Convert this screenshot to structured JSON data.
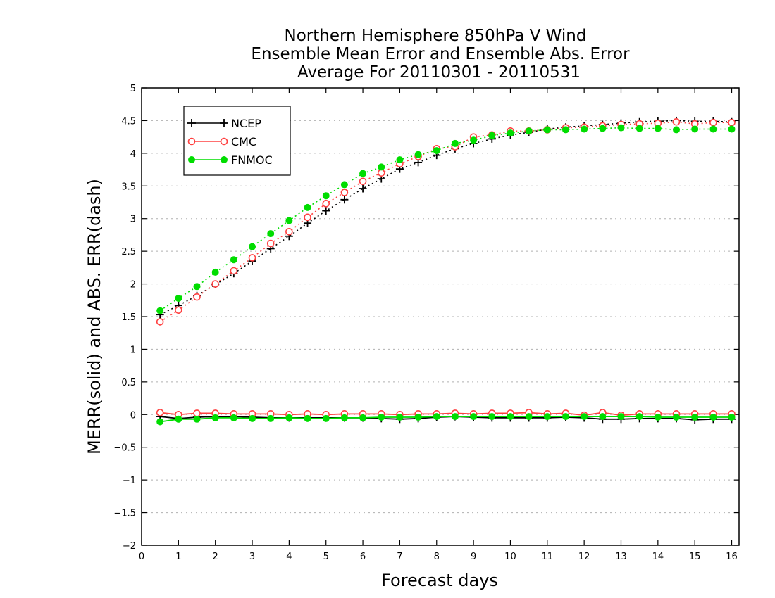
{
  "chart_data": {
    "type": "line",
    "title": [
      "Northern Hemisphere 850hPa V Wind",
      "Ensemble Mean Error and Ensemble Abs. Error",
      "Average For 20110301 - 20110531"
    ],
    "xlabel": "Forecast days",
    "ylabel": "MERR(solid) and ABS. ERR(dash)",
    "xlim": [
      0,
      16.2
    ],
    "ylim": [
      -2,
      5
    ],
    "xticks": [
      0,
      1,
      2,
      3,
      4,
      5,
      6,
      7,
      8,
      9,
      10,
      11,
      12,
      13,
      14,
      15,
      16
    ],
    "yticks": [
      -2,
      -1.5,
      -1,
      -0.5,
      0,
      0.5,
      1,
      1.5,
      2,
      2.5,
      3,
      3.5,
      4,
      4.5,
      5
    ],
    "grid": true,
    "legend": {
      "placement": "top-left",
      "entries": [
        "NCEP",
        "CMC",
        "FNMOC"
      ]
    },
    "x": [
      0.5,
      1,
      1.5,
      2,
      2.5,
      3,
      3.5,
      4,
      4.5,
      5,
      5.5,
      6,
      6.5,
      7,
      7.5,
      8,
      8.5,
      9,
      9.5,
      10,
      10.5,
      11,
      11.5,
      12,
      12.5,
      13,
      13.5,
      14,
      14.5,
      15,
      15.5,
      16
    ],
    "series": [
      {
        "name": "NCEP",
        "color": "#000000",
        "marker": "plus",
        "merr": [
          -0.03,
          -0.06,
          -0.04,
          -0.03,
          -0.03,
          -0.04,
          -0.05,
          -0.05,
          -0.05,
          -0.05,
          -0.05,
          -0.05,
          -0.06,
          -0.07,
          -0.06,
          -0.04,
          -0.03,
          -0.04,
          -0.05,
          -0.05,
          -0.05,
          -0.05,
          -0.04,
          -0.05,
          -0.07,
          -0.07,
          -0.06,
          -0.06,
          -0.06,
          -0.08,
          -0.07,
          -0.07
        ],
        "abs_err": [
          1.53,
          1.67,
          1.82,
          1.99,
          2.16,
          2.35,
          2.54,
          2.73,
          2.93,
          3.12,
          3.29,
          3.46,
          3.61,
          3.76,
          3.86,
          3.97,
          4.07,
          4.15,
          4.22,
          4.28,
          4.32,
          4.37,
          4.4,
          4.42,
          4.44,
          4.46,
          4.48,
          4.49,
          4.5,
          4.49,
          4.49,
          4.48
        ]
      },
      {
        "name": "CMC",
        "color": "#ff4040",
        "marker": "open-circle",
        "merr": [
          0.03,
          0.0,
          0.02,
          0.02,
          0.01,
          0.01,
          0.01,
          0.0,
          0.01,
          0.0,
          0.01,
          0.01,
          0.01,
          0.0,
          0.01,
          0.01,
          0.02,
          0.01,
          0.02,
          0.02,
          0.03,
          0.01,
          0.02,
          -0.01,
          0.03,
          -0.01,
          0.01,
          0.01,
          0.01,
          0.01,
          0.01,
          0.01
        ],
        "abs_err": [
          1.42,
          1.6,
          1.8,
          2.0,
          2.2,
          2.4,
          2.62,
          2.8,
          3.02,
          3.23,
          3.4,
          3.57,
          3.7,
          3.84,
          3.95,
          4.07,
          4.1,
          4.25,
          4.28,
          4.34,
          4.34,
          4.36,
          4.39,
          4.4,
          4.42,
          4.44,
          4.45,
          4.46,
          4.48,
          4.45,
          4.47,
          4.47
        ]
      },
      {
        "name": "FNMOC",
        "color": "#00dd00",
        "marker": "filled-circle",
        "merr": [
          -0.11,
          -0.07,
          -0.07,
          -0.05,
          -0.05,
          -0.06,
          -0.06,
          -0.05,
          -0.06,
          -0.06,
          -0.05,
          -0.05,
          -0.04,
          -0.04,
          -0.04,
          -0.03,
          -0.03,
          -0.03,
          -0.03,
          -0.03,
          -0.03,
          -0.03,
          -0.03,
          -0.03,
          -0.03,
          -0.03,
          -0.03,
          -0.04,
          -0.04,
          -0.04,
          -0.04,
          -0.04
        ],
        "abs_err": [
          1.59,
          1.78,
          1.96,
          2.18,
          2.37,
          2.57,
          2.77,
          2.97,
          3.17,
          3.35,
          3.52,
          3.69,
          3.79,
          3.9,
          3.98,
          4.04,
          4.15,
          4.2,
          4.27,
          4.31,
          4.34,
          4.36,
          4.36,
          4.37,
          4.38,
          4.39,
          4.38,
          4.38,
          4.36,
          4.37,
          4.37,
          4.37
        ]
      }
    ]
  }
}
